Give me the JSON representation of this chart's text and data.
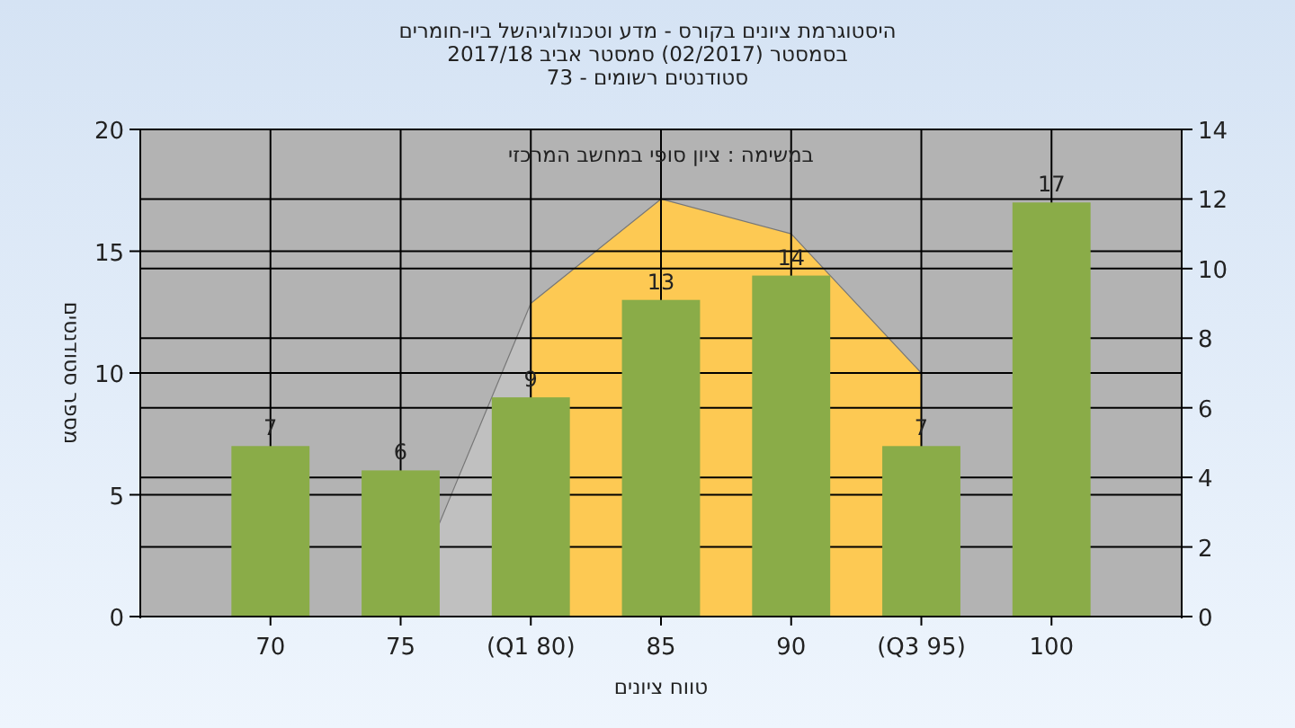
{
  "chart_data": {
    "type": "bar",
    "title": "היסטוגרמת ציונים בקורס - מדע וטכנולוגיהשל ביו-חומרים\nבסמסטר  (02/2017)  סמסטר אביב 2017/18\nסטודנטים רשומים - 73",
    "xlabel": "טווח ציונים",
    "ylabel": "מספר סטודנטים",
    "annotations": [
      "במשימה : ציון סופי במחשב המרכזי"
    ],
    "categories": [
      "70",
      "75",
      "(Q1 80)",
      "85",
      "90",
      "(Q3 95)",
      "100"
    ],
    "series": [
      {
        "type": "area",
        "axis": "y2",
        "color": "#c0c0c0",
        "values": [
          null,
          0,
          9,
          null,
          null,
          null,
          null
        ]
      },
      {
        "type": "area",
        "axis": "y2",
        "color": "#fdc953",
        "values": [
          null,
          null,
          9,
          12,
          11,
          7,
          null
        ]
      },
      {
        "color": "#8aac48",
        "values": [
          7,
          6,
          9,
          13,
          14,
          7,
          17
        ],
        "value_labels": [
          "7",
          "6",
          "9",
          "13",
          "14",
          "7",
          "17"
        ]
      }
    ],
    "ylim": [
      0,
      20
    ],
    "yticks": [
      0,
      5,
      10,
      15,
      20
    ],
    "y2lim": [
      0,
      14
    ],
    "y2ticks": [
      0,
      2,
      4,
      6,
      8,
      10,
      12,
      14
    ],
    "grid": true
  }
}
